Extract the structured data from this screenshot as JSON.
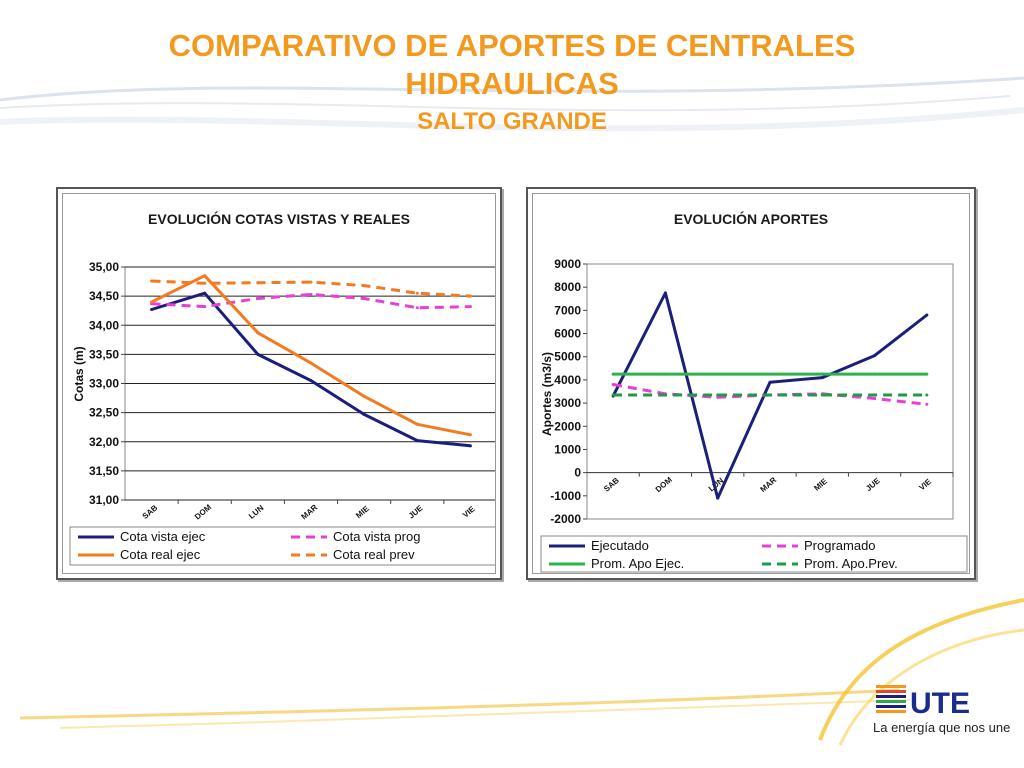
{
  "header": {
    "title_line1": "COMPARATIVO DE APORTES DE CENTRALES",
    "title_line2": "HIDRAULICAS",
    "subtitle": "SALTO GRANDE"
  },
  "brand": {
    "logo_text": "UTE",
    "tagline": "La energía que nos une",
    "accent": "#F39A1E"
  },
  "chart_data": [
    {
      "type": "line",
      "title": "EVOLUCIÓN  COTAS VISTAS Y REALES",
      "xlabel": "",
      "ylabel": "Cotas (m)",
      "categories": [
        "SAB",
        "DOM",
        "LUN",
        "MAR",
        "MIE",
        "JUE",
        "VIE"
      ],
      "ylim": [
        31,
        35
      ],
      "yticks": [
        "31,00",
        "31,50",
        "32,00",
        "32,50",
        "33,00",
        "33,50",
        "34,00",
        "34,50",
        "35,00"
      ],
      "grid": true,
      "legend_position": "bottom",
      "series": [
        {
          "name": "Cota vista ejec",
          "values": [
            34.27,
            34.55,
            33.5,
            33.05,
            32.47,
            32.02,
            31.93
          ],
          "color": "#1B1F7A",
          "dash": "solid"
        },
        {
          "name": "Cota vista prog",
          "values": [
            34.37,
            34.32,
            34.46,
            34.53,
            34.46,
            34.3,
            34.32
          ],
          "color": "#E83FD6",
          "dash": "dashed"
        },
        {
          "name": "Cota real ejec",
          "values": [
            34.4,
            34.85,
            33.87,
            33.35,
            32.78,
            32.3,
            32.12
          ],
          "color": "#F47A20",
          "dash": "solid"
        },
        {
          "name": "Cota real prev",
          "values": [
            34.76,
            34.72,
            34.73,
            34.74,
            34.68,
            34.55,
            34.5
          ],
          "color": "#F47A20",
          "dash": "dashed"
        }
      ]
    },
    {
      "type": "line",
      "title": "EVOLUCIÓN  APORTES",
      "xlabel": "",
      "ylabel": "Aportes (m3/s)",
      "categories": [
        "SAB",
        "DOM",
        "LUN",
        "MAR",
        "MIE",
        "JUE",
        "VIE"
      ],
      "ylim": [
        -2000,
        9000
      ],
      "yticks": [
        "-2000",
        "-1000",
        "0",
        "1000",
        "2000",
        "3000",
        "4000",
        "5000",
        "6000",
        "7000",
        "8000",
        "9000"
      ],
      "grid": false,
      "legend_position": "bottom",
      "series": [
        {
          "name": "Ejecutado",
          "values": [
            3300,
            7750,
            -1100,
            3900,
            4100,
            5050,
            6800
          ],
          "color": "#1B1F7A",
          "dash": "solid"
        },
        {
          "name": "Programado",
          "values": [
            3800,
            3400,
            3250,
            3350,
            3400,
            3200,
            2950
          ],
          "color": "#E83FD6",
          "dash": "dashed"
        },
        {
          "name": "Prom. Apo Ejec.",
          "values": [
            4250,
            4250,
            4250,
            4250,
            4250,
            4250,
            4250
          ],
          "color": "#2DB34A",
          "dash": "solid"
        },
        {
          "name": "Prom. Apo.Prev.",
          "values": [
            3350,
            3350,
            3350,
            3350,
            3350,
            3350,
            3350
          ],
          "color": "#1E9A48",
          "dash": "dashed"
        }
      ]
    }
  ]
}
